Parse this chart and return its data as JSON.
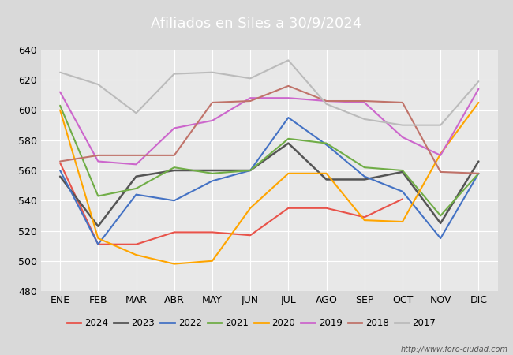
{
  "title": "Afiliados en Siles a 30/9/2024",
  "header_color": "#4472c4",
  "background_color": "#d9d9d9",
  "plot_background": "#e8e8e8",
  "ylim": [
    480,
    640
  ],
  "yticks": [
    480,
    500,
    520,
    540,
    560,
    580,
    600,
    620,
    640
  ],
  "months": [
    "ENE",
    "FEB",
    "MAR",
    "ABR",
    "MAY",
    "JUN",
    "JUL",
    "AGO",
    "SEP",
    "OCT",
    "NOV",
    "DIC"
  ],
  "series": {
    "2024": {
      "color": "#e8534a",
      "linewidth": 1.5,
      "data": [
        565,
        511,
        511,
        519,
        519,
        517,
        535,
        535,
        529,
        541,
        null,
        null
      ]
    },
    "2023": {
      "color": "#555555",
      "linewidth": 1.8,
      "data": [
        556,
        523,
        556,
        560,
        560,
        560,
        578,
        554,
        554,
        559,
        525,
        566
      ]
    },
    "2022": {
      "color": "#4472c4",
      "linewidth": 1.5,
      "data": [
        560,
        511,
        544,
        540,
        553,
        560,
        595,
        577,
        556,
        546,
        515,
        558
      ]
    },
    "2021": {
      "color": "#70ad47",
      "linewidth": 1.5,
      "data": [
        603,
        543,
        548,
        562,
        558,
        560,
        581,
        578,
        562,
        560,
        530,
        558
      ]
    },
    "2020": {
      "color": "#ffa500",
      "linewidth": 1.5,
      "data": [
        600,
        515,
        504,
        498,
        500,
        535,
        558,
        558,
        527,
        526,
        571,
        605
      ]
    },
    "2019": {
      "color": "#cc66cc",
      "linewidth": 1.5,
      "data": [
        612,
        566,
        564,
        588,
        593,
        608,
        608,
        606,
        605,
        582,
        570,
        614
      ]
    },
    "2018": {
      "color": "#c0736a",
      "linewidth": 1.5,
      "data": [
        566,
        570,
        570,
        570,
        605,
        606,
        616,
        606,
        606,
        605,
        559,
        558
      ]
    },
    "2017": {
      "color": "#bbbbbb",
      "linewidth": 1.5,
      "data": [
        625,
        617,
        598,
        624,
        625,
        621,
        633,
        604,
        594,
        590,
        590,
        619
      ]
    }
  },
  "legend_order": [
    "2024",
    "2023",
    "2022",
    "2021",
    "2020",
    "2019",
    "2018",
    "2017"
  ],
  "footer": "http://www.foro-ciudad.com"
}
